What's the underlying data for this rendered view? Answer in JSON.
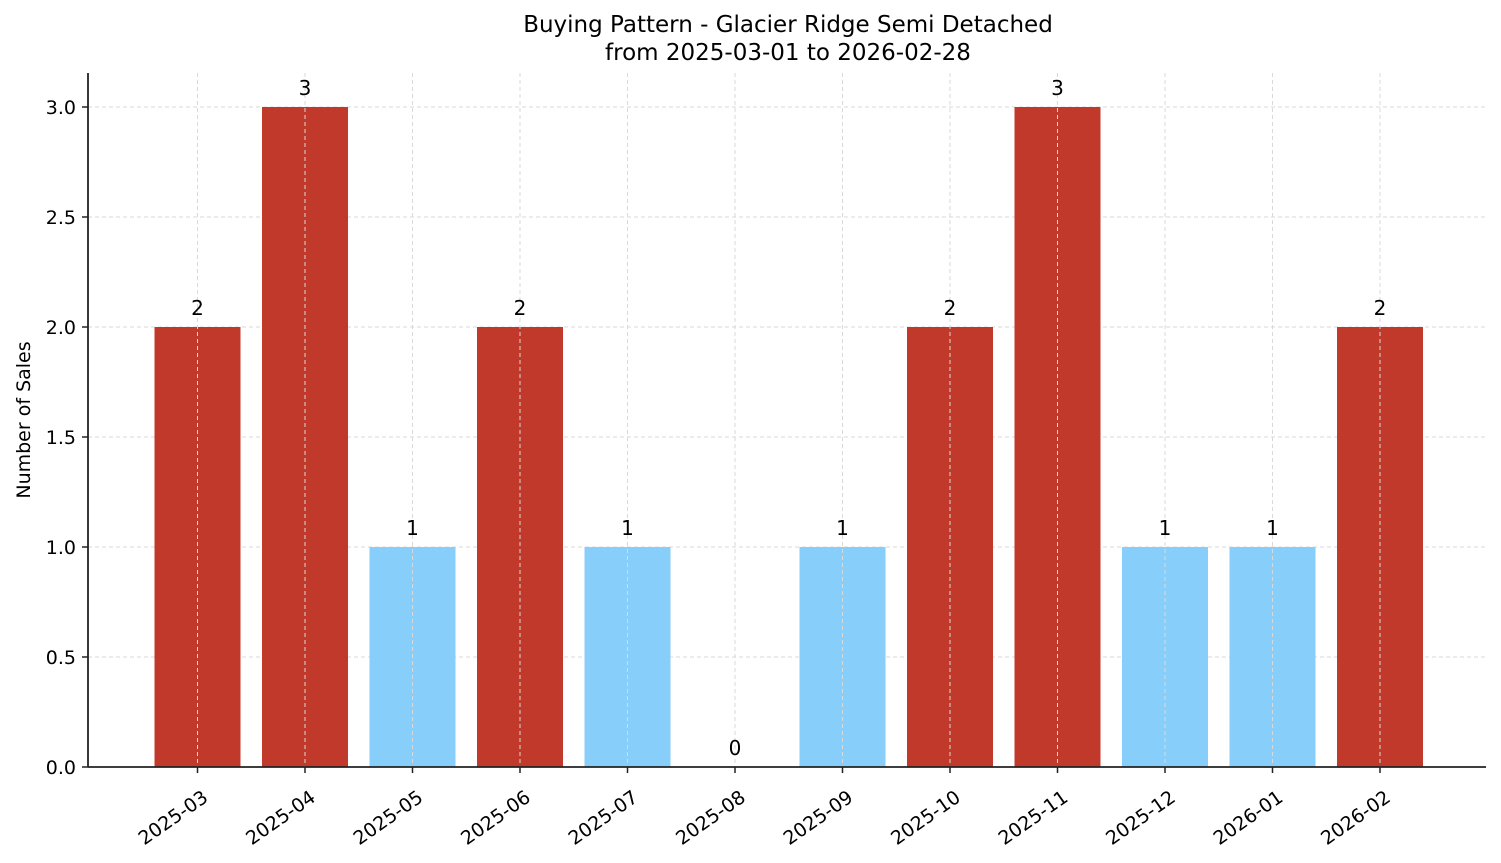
{
  "chart_data": {
    "type": "bar",
    "title": "Buying Pattern - Glacier Ridge Semi Detached",
    "subtitle": "from 2025-03-01 to 2026-02-28",
    "xlabel": "",
    "ylabel": "Number of Sales",
    "categories": [
      "2025-03",
      "2025-04",
      "2025-05",
      "2025-06",
      "2025-07",
      "2025-08",
      "2025-09",
      "2025-10",
      "2025-11",
      "2025-12",
      "2026-01",
      "2026-02"
    ],
    "values": [
      2,
      3,
      1,
      2,
      1,
      0,
      1,
      2,
      3,
      1,
      1,
      2
    ],
    "colors": [
      "#c0392b",
      "#c0392b",
      "#87cefa",
      "#c0392b",
      "#87cefa",
      "#87cefa",
      "#87cefa",
      "#c0392b",
      "#c0392b",
      "#87cefa",
      "#87cefa",
      "#c0392b"
    ],
    "ylim": [
      0,
      3.15
    ],
    "yticks": [
      "0.0",
      "0.5",
      "1.0",
      "1.5",
      "2.0",
      "2.5",
      "3.0"
    ],
    "grid": true,
    "legend": null,
    "data_labels": true
  },
  "colors": {
    "high": "#c0392b",
    "low": "#87cefa",
    "grid": "#d9d9d9",
    "axis": "#222222"
  }
}
